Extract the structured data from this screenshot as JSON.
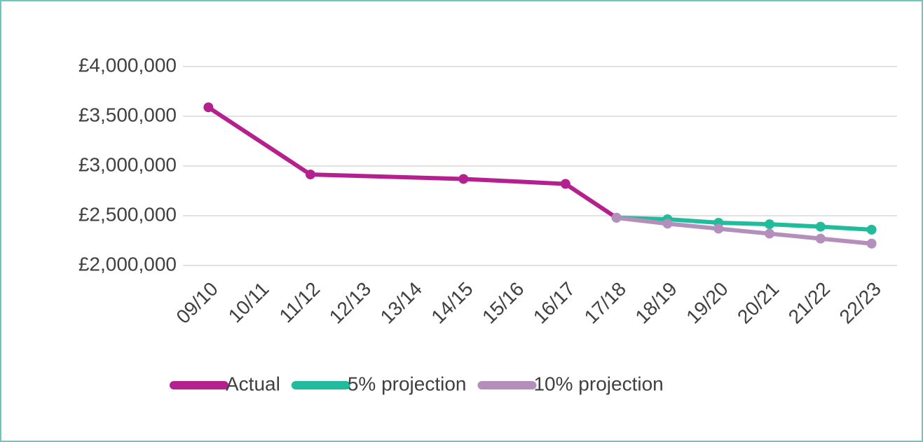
{
  "chart_data": {
    "type": "line",
    "categories": [
      "09/10",
      "10/11",
      "11/12",
      "12/13",
      "13/14",
      "14/15",
      "15/16",
      "16/17",
      "17/18",
      "18/19",
      "19/20",
      "20/21",
      "21/22",
      "22/23"
    ],
    "series": [
      {
        "name": "Actual",
        "color": "#b5208f",
        "values": [
          3590000,
          null,
          2915000,
          null,
          null,
          2870000,
          null,
          2820000,
          2480000,
          null,
          null,
          null,
          null,
          null
        ]
      },
      {
        "name": "5% projection",
        "color": "#21bc9c",
        "values": [
          null,
          null,
          null,
          null,
          null,
          null,
          null,
          null,
          2480000,
          2465000,
          2430000,
          2415000,
          2390000,
          2360000
        ]
      },
      {
        "name": "10% projection",
        "color": "#b58fbb",
        "values": [
          null,
          null,
          null,
          null,
          null,
          null,
          null,
          null,
          2480000,
          2420000,
          2370000,
          2320000,
          2270000,
          2220000
        ]
      }
    ],
    "ylim": [
      2000000,
      4000000
    ],
    "yticks": [
      {
        "value": 2000000,
        "label": "£2,000,000"
      },
      {
        "value": 2500000,
        "label": "£2,500,000"
      },
      {
        "value": 3000000,
        "label": "£3,000,000"
      },
      {
        "value": 3500000,
        "label": "£3,500,000"
      },
      {
        "value": 4000000,
        "label": "£4,000,000"
      }
    ],
    "grid": true,
    "connect_gaps": true,
    "legend": "bottom"
  }
}
